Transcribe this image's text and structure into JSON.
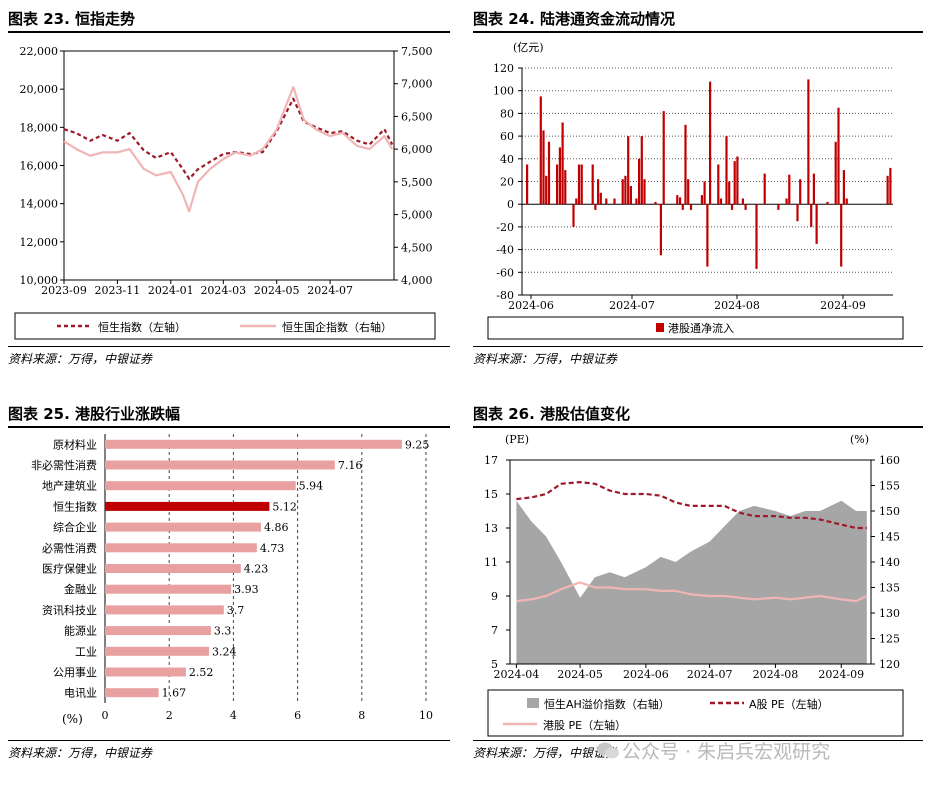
{
  "panels": [
    {
      "title": "图表 23. 恒指走势",
      "source": "资料来源：万得，中银证券"
    },
    {
      "title": "图表 24. 陆港通资金流动情况",
      "source": "资料来源：万得，中银证券"
    },
    {
      "title": "图表 25. 港股行业涨跌幅",
      "source": "资料来源：万得，中银证券"
    },
    {
      "title": "图表 26. 港股估值变化",
      "source": "资料来源：万得，中银证券"
    }
  ],
  "watermark": "公众号 · 朱启兵宏观研究",
  "colors": {
    "dark_red": "#9e1a2a",
    "pink": "#f0b5b5",
    "bar_red": "#c00000",
    "bar_pink": "#e8a0a0",
    "highlight": "#c00000",
    "gray_area": "#a6a6a6"
  },
  "chart_data": [
    {
      "type": "line",
      "title": "图表 23. 恒指走势",
      "x_ticks": [
        "2023-09",
        "2023-11",
        "2024-01",
        "2024-03",
        "2024-05",
        "2024-07"
      ],
      "y_left_ticks": [
        "10,000",
        "12,000",
        "14,000",
        "16,000",
        "18,000",
        "20,000",
        "22,000"
      ],
      "y_right_ticks": [
        "4,000",
        "4,500",
        "5,000",
        "5,500",
        "6,000",
        "6,500",
        "7,000",
        "7,500"
      ],
      "ylim_left": [
        10000,
        22000
      ],
      "ylim_right": [
        4000,
        7500
      ],
      "legend_position": "bottom",
      "series": [
        {
          "name": "恒生指数（左轴）",
          "axis": "left",
          "style": "dashed",
          "color": "#9e1a2a",
          "x": [
            "2023-09-01",
            "2023-09-15",
            "2023-10-01",
            "2023-10-15",
            "2023-11-01",
            "2023-11-15",
            "2023-12-01",
            "2023-12-15",
            "2024-01-01",
            "2024-01-15",
            "2024-01-22",
            "2024-02-01",
            "2024-02-15",
            "2024-03-01",
            "2024-03-15",
            "2024-04-01",
            "2024-04-15",
            "2024-05-01",
            "2024-05-20",
            "2024-06-01",
            "2024-06-15",
            "2024-07-01",
            "2024-07-15",
            "2024-08-01",
            "2024-08-15",
            "2024-09-01",
            "2024-09-10"
          ],
          "y": [
            17900,
            17700,
            17300,
            17600,
            17300,
            17700,
            16800,
            16400,
            16700,
            15800,
            15300,
            15800,
            16200,
            16600,
            16700,
            16600,
            16700,
            17800,
            19500,
            18300,
            18000,
            17700,
            17800,
            17300,
            17100,
            17900,
            17100
          ]
        },
        {
          "name": "恒生国企指数（右轴）",
          "axis": "right",
          "style": "solid",
          "color": "#f0b5b5",
          "x": [
            "2023-09-01",
            "2023-09-15",
            "2023-10-01",
            "2023-10-15",
            "2023-11-01",
            "2023-11-15",
            "2023-12-01",
            "2023-12-15",
            "2024-01-01",
            "2024-01-15",
            "2024-01-22",
            "2024-02-01",
            "2024-02-15",
            "2024-03-01",
            "2024-03-15",
            "2024-04-01",
            "2024-04-15",
            "2024-05-01",
            "2024-05-20",
            "2024-06-01",
            "2024-06-15",
            "2024-07-01",
            "2024-07-15",
            "2024-08-01",
            "2024-08-15",
            "2024-09-01",
            "2024-09-10"
          ],
          "y": [
            6120,
            6000,
            5900,
            5950,
            5950,
            6000,
            5700,
            5600,
            5650,
            5300,
            5050,
            5500,
            5700,
            5850,
            5950,
            5900,
            6000,
            6300,
            6950,
            6450,
            6300,
            6200,
            6250,
            6050,
            6000,
            6200,
            6000
          ]
        }
      ]
    },
    {
      "type": "bar",
      "title": "图表 24. 陆港通资金流动情况",
      "unit": "(亿元)",
      "x_ticks": [
        "2024-06",
        "2024-07",
        "2024-08",
        "2024-09"
      ],
      "y_ticks": [
        -80,
        -60,
        -40,
        -20,
        0,
        20,
        40,
        60,
        80,
        100,
        120
      ],
      "ylim": [
        -80,
        120
      ],
      "legend_position": "bottom",
      "series": [
        {
          "name": "港股通净流入",
          "color": "#c00000",
          "values": [
            35,
            0,
            0,
            0,
            0,
            95,
            65,
            25,
            55,
            0,
            0,
            35,
            50,
            72,
            30,
            0,
            0,
            -20,
            5,
            35,
            35,
            0,
            0,
            0,
            35,
            -5,
            22,
            10,
            0,
            5,
            0,
            0,
            5,
            0,
            0,
            22,
            25,
            60,
            16,
            0,
            5,
            40,
            60,
            22,
            0,
            0,
            0,
            2,
            0,
            -45,
            82,
            0,
            0,
            0,
            0,
            8,
            6,
            -5,
            70,
            22,
            -5,
            0,
            0,
            0,
            8,
            20,
            -55,
            108,
            0,
            0,
            35,
            5,
            0,
            60,
            20,
            -5,
            38,
            42,
            0,
            5,
            -5,
            0,
            0,
            0,
            -57,
            0,
            0,
            27,
            0,
            0,
            0,
            0,
            -5,
            0,
            0,
            5,
            26,
            0,
            0,
            -15,
            22,
            0,
            0,
            110,
            -20,
            27,
            -35,
            0,
            0,
            0,
            2,
            0,
            0,
            55,
            85,
            -55,
            30,
            5,
            0,
            0,
            0,
            0,
            0,
            0,
            0,
            0,
            0,
            0,
            0,
            0,
            0,
            0,
            25,
            32
          ]
        }
      ]
    },
    {
      "type": "bar",
      "orientation": "horizontal",
      "title": "图表 25. 港股行业涨跌幅",
      "unit": "(%)",
      "categories": [
        "原材料业",
        "非必需性消费",
        "地产建筑业",
        "恒生指数",
        "综合企业",
        "必需性消费",
        "医疗保健业",
        "金融业",
        "资讯科技业",
        "能源业",
        "工业",
        "公用事业",
        "电讯业"
      ],
      "values": [
        9.25,
        7.16,
        5.94,
        5.12,
        4.86,
        4.73,
        4.23,
        3.93,
        3.7,
        3.3,
        3.24,
        2.52,
        1.67
      ],
      "labels": [
        "9.25",
        "7.16",
        "5.94",
        "5.12",
        "4.86",
        "4.73",
        "4.23",
        "3.93",
        "3.7",
        "3.3",
        "3.24",
        "2.52",
        "1.67"
      ],
      "highlight": "恒生指数",
      "x_ticks": [
        0,
        2,
        4,
        6,
        8,
        10
      ],
      "xlim": [
        0,
        10
      ],
      "grid": "vertical dashed"
    },
    {
      "type": "area",
      "title": "图表 26. 港股估值变化",
      "y_left_label": "(PE)",
      "y_right_label": "(%)",
      "x_ticks": [
        "2024-04",
        "2024-05",
        "2024-06",
        "2024-07",
        "2024-08",
        "2024-09"
      ],
      "y_left_ticks": [
        5,
        7,
        9,
        11,
        13,
        15,
        17
      ],
      "y_right_ticks": [
        120,
        125,
        130,
        135,
        140,
        145,
        150,
        155,
        160
      ],
      "ylim_left": [
        5,
        17
      ],
      "ylim_right": [
        120,
        160
      ],
      "legend_position": "bottom",
      "x": [
        "2024-04-01",
        "2024-04-08",
        "2024-04-15",
        "2024-04-22",
        "2024-05-01",
        "2024-05-08",
        "2024-05-15",
        "2024-05-22",
        "2024-06-01",
        "2024-06-08",
        "2024-06-15",
        "2024-06-22",
        "2024-07-01",
        "2024-07-08",
        "2024-07-15",
        "2024-07-22",
        "2024-08-01",
        "2024-08-08",
        "2024-08-15",
        "2024-08-22",
        "2024-09-01",
        "2024-09-08",
        "2024-09-13"
      ],
      "series": [
        {
          "name": "恒生AH溢价指数（右轴）",
          "axis": "right",
          "style": "area",
          "color": "#a6a6a6",
          "values": [
            152,
            148,
            145,
            140,
            133,
            137,
            138,
            137,
            139,
            141,
            140,
            142,
            144,
            147,
            150,
            151,
            150,
            149,
            150,
            150,
            152,
            150,
            150
          ]
        },
        {
          "name": "A股 PE（左轴）",
          "axis": "left",
          "style": "dashed",
          "color": "#9e1a2a",
          "values": [
            14.7,
            14.8,
            15.0,
            15.6,
            15.7,
            15.6,
            15.2,
            15.0,
            15.0,
            14.9,
            14.5,
            14.3,
            14.3,
            14.3,
            13.9,
            13.7,
            13.7,
            13.6,
            13.6,
            13.5,
            13.2,
            13.0,
            13.0
          ]
        },
        {
          "name": "港股 PE（左轴）",
          "axis": "left",
          "style": "solid",
          "color": "#f0b5b5",
          "values": [
            8.7,
            8.8,
            9.0,
            9.4,
            9.8,
            9.5,
            9.5,
            9.4,
            9.4,
            9.3,
            9.3,
            9.1,
            9.0,
            9.0,
            8.9,
            8.8,
            8.9,
            8.8,
            8.9,
            9.0,
            8.8,
            8.7,
            9.0
          ]
        }
      ]
    }
  ]
}
